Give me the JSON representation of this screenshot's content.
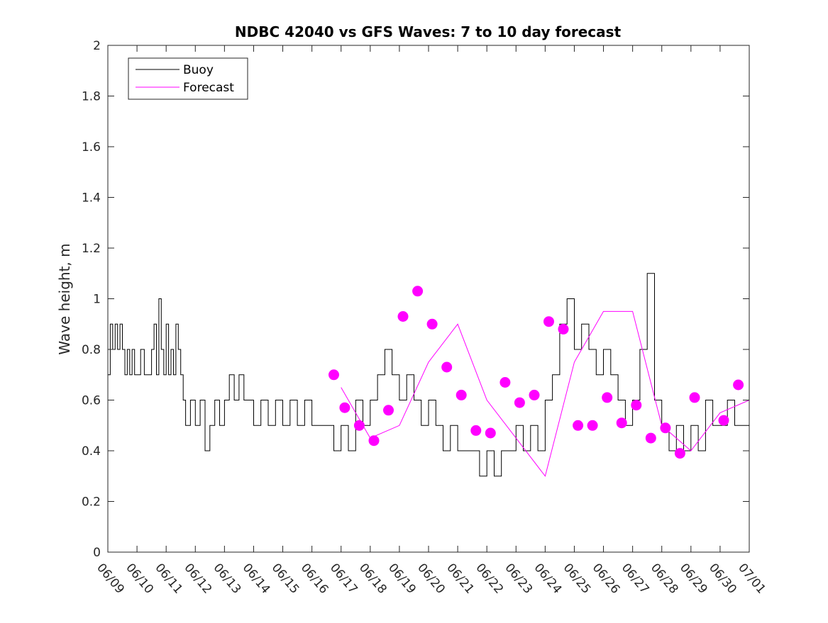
{
  "chart_data": {
    "type": "line",
    "title": "NDBC 42040 vs GFS Waves: 7 to 10 day forecast",
    "xlabel": "",
    "ylabel": "Wave height, m",
    "xlim": [
      "06/09",
      "07/01"
    ],
    "ylim": [
      0,
      2
    ],
    "x_ticks": [
      "06/09",
      "06/10",
      "06/11",
      "06/12",
      "06/13",
      "06/14",
      "06/15",
      "06/16",
      "06/17",
      "06/18",
      "06/19",
      "06/20",
      "06/21",
      "06/22",
      "06/23",
      "06/24",
      "06/25",
      "06/26",
      "06/27",
      "06/28",
      "06/29",
      "06/30",
      "07/01"
    ],
    "y_ticks": [
      "0",
      "0.2",
      "0.4",
      "0.6",
      "0.8",
      "1",
      "1.2",
      "1.4",
      "1.6",
      "1.8",
      "2"
    ],
    "y_tick_values": [
      0,
      0.2,
      0.4,
      0.6,
      0.8,
      1.0,
      1.2,
      1.4,
      1.6,
      1.8,
      2.0
    ],
    "grid": false,
    "legend": {
      "position": "top-left",
      "entries": [
        {
          "name": "Buoy",
          "color": "#000000"
        },
        {
          "name": "Forecast",
          "color": "#ff00ff"
        }
      ]
    },
    "colors": {
      "buoy": "#000000",
      "forecast": "#ff00ff"
    },
    "series": [
      {
        "name": "Buoy",
        "style": "line",
        "x": [
          "06/09",
          "06/09 02:00",
          "06/09 04:00",
          "06/09 06:00",
          "06/09 08:00",
          "06/09 10:00",
          "06/09 12:00",
          "06/09 14:00",
          "06/09 16:00",
          "06/09 18:00",
          "06/09 20:00",
          "06/09 22:00",
          "06/10",
          "06/10 03:00",
          "06/10 06:00",
          "06/10 09:00",
          "06/10 12:00",
          "06/10 14:00",
          "06/10 16:00",
          "06/10 18:00",
          "06/10 20:00",
          "06/10 22:00",
          "06/11",
          "06/11 02:00",
          "06/11 04:00",
          "06/11 06:00",
          "06/11 08:00",
          "06/11 10:00",
          "06/11 12:00",
          "06/11 14:00",
          "06/11 16:00",
          "06/11 20:00",
          "06/12",
          "06/12 04:00",
          "06/12 08:00",
          "06/12 12:00",
          "06/12 16:00",
          "06/12 20:00",
          "06/13",
          "06/13 04:00",
          "06/13 08:00",
          "06/13 12:00",
          "06/13 16:00",
          "06/13 20:00",
          "06/14",
          "06/14 06:00",
          "06/14 12:00",
          "06/14 18:00",
          "06/15",
          "06/15 06:00",
          "06/15 12:00",
          "06/15 18:00",
          "06/16",
          "06/16 06:00",
          "06/16 12:00",
          "06/16 18:00",
          "06/17",
          "06/17 06:00",
          "06/17 12:00",
          "06/17 18:00",
          "06/18",
          "06/18 06:00",
          "06/18 12:00",
          "06/18 18:00",
          "06/19",
          "06/19 06:00",
          "06/19 12:00",
          "06/19 18:00",
          "06/20",
          "06/20 06:00",
          "06/20 12:00",
          "06/20 18:00",
          "06/21",
          "06/21 06:00",
          "06/21 12:00",
          "06/21 18:00",
          "06/22",
          "06/22 06:00",
          "06/22 12:00",
          "06/22 18:00",
          "06/23",
          "06/23 06:00",
          "06/23 12:00",
          "06/23 18:00",
          "06/24",
          "06/24 06:00",
          "06/24 12:00",
          "06/24 18:00",
          "06/25",
          "06/25 06:00",
          "06/25 12:00",
          "06/25 18:00",
          "06/26",
          "06/26 06:00",
          "06/26 12:00",
          "06/26 18:00",
          "06/27",
          "06/27 06:00",
          "06/27 12:00",
          "06/27 18:00",
          "06/28",
          "06/28 06:00",
          "06/28 12:00",
          "06/28 18:00",
          "06/29",
          "06/29 06:00",
          "06/29 12:00",
          "06/29 18:00",
          "06/30",
          "06/30 06:00",
          "06/30 12:00",
          "06/30 18:00",
          "07/01"
        ],
        "values": [
          0.7,
          0.9,
          0.8,
          0.9,
          0.8,
          0.9,
          0.8,
          0.7,
          0.8,
          0.7,
          0.8,
          0.7,
          0.7,
          0.8,
          0.7,
          0.7,
          0.8,
          0.9,
          0.7,
          1.0,
          0.8,
          0.7,
          0.9,
          0.7,
          0.8,
          0.7,
          0.9,
          0.8,
          0.7,
          0.6,
          0.5,
          0.6,
          0.5,
          0.6,
          0.4,
          0.5,
          0.6,
          0.5,
          0.6,
          0.7,
          0.6,
          0.7,
          0.6,
          0.6,
          0.5,
          0.6,
          0.5,
          0.6,
          0.5,
          0.6,
          0.5,
          0.6,
          0.5,
          0.5,
          0.5,
          0.4,
          0.5,
          0.4,
          0.6,
          0.5,
          0.6,
          0.7,
          0.8,
          0.7,
          0.6,
          0.7,
          0.6,
          0.5,
          0.6,
          0.5,
          0.4,
          0.5,
          0.4,
          0.4,
          0.4,
          0.3,
          0.4,
          0.3,
          0.4,
          0.4,
          0.5,
          0.4,
          0.5,
          0.4,
          0.6,
          0.7,
          0.9,
          1.0,
          0.8,
          0.9,
          0.8,
          0.7,
          0.8,
          0.7,
          0.6,
          0.5,
          0.6,
          0.8,
          1.1,
          0.6,
          0.5,
          0.4,
          0.5,
          0.4,
          0.5,
          0.4,
          0.6,
          0.5,
          0.5,
          0.6,
          0.5,
          0.5,
          0.5
        ]
      },
      {
        "name": "Forecast",
        "style": "line",
        "x": [
          "06/17",
          "06/18",
          "06/19",
          "06/20",
          "06/21",
          "06/22",
          "06/23",
          "06/24",
          "06/25",
          "06/26",
          "06/27",
          "06/28",
          "06/29",
          "06/30",
          "07/01"
        ],
        "values": [
          0.65,
          0.45,
          0.5,
          0.75,
          0.9,
          0.6,
          0.45,
          0.3,
          0.75,
          0.95,
          0.95,
          0.5,
          0.4,
          0.55,
          0.6
        ]
      },
      {
        "name": "Forecast",
        "style": "markers",
        "x": [
          "06/16 18:00",
          "06/17 03:00",
          "06/17 15:00",
          "06/18 03:00",
          "06/18 15:00",
          "06/19 03:00",
          "06/19 15:00",
          "06/20 03:00",
          "06/20 15:00",
          "06/21 03:00",
          "06/21 15:00",
          "06/22 03:00",
          "06/22 15:00",
          "06/23 03:00",
          "06/23 15:00",
          "06/24 03:00",
          "06/24 15:00",
          "06/25 03:00",
          "06/25 15:00",
          "06/26 03:00",
          "06/26 15:00",
          "06/27 03:00",
          "06/27 15:00",
          "06/28 03:00",
          "06/28 15:00",
          "06/29 03:00",
          "06/30 03:00",
          "06/30 15:00"
        ],
        "values": [
          0.7,
          0.57,
          0.5,
          0.44,
          0.56,
          0.93,
          1.03,
          0.9,
          0.73,
          0.62,
          0.48,
          0.47,
          0.67,
          0.59,
          0.62,
          0.91,
          0.88,
          0.5,
          0.5,
          0.61,
          0.51,
          0.58,
          0.45,
          0.49,
          0.39,
          0.61,
          0.52,
          0.66
        ]
      }
    ]
  }
}
